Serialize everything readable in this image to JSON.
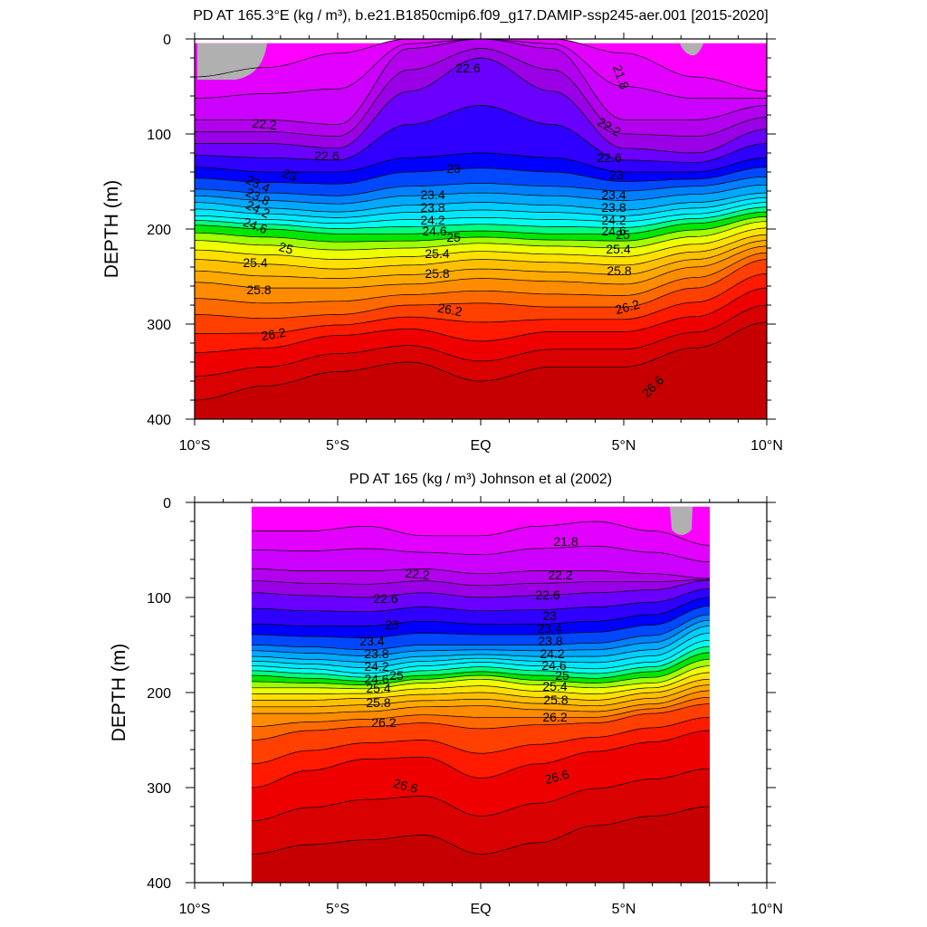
{
  "chart_data": [
    {
      "type": "contour",
      "title": "PD AT 165.3°E (kg / m³), b.e21.B1850cmip6.f09_g17.DAMIP-ssp245-aer.001 [2015-2020]",
      "xlabel": "",
      "ylabel": "DEPTH (m)",
      "xlim": [
        -10,
        10
      ],
      "ylim": [
        400,
        0
      ],
      "x_tick_labels": [
        "10°S",
        "5°S",
        "EQ",
        "5°N",
        "10°N"
      ],
      "y_tick_labels": [
        "0",
        "100",
        "200",
        "300",
        "400"
      ],
      "contour_interval": 0.2,
      "shading_levels": [
        21.6,
        21.8,
        22.0,
        22.2,
        22.4,
        22.6,
        22.8,
        23.0,
        23.2,
        23.4,
        23.6,
        23.8,
        24.0,
        24.2,
        24.4,
        24.6,
        24.8,
        25.0,
        25.2,
        25.4,
        25.6,
        25.8,
        26.0,
        26.2,
        26.4,
        26.6
      ],
      "missing_color": "#b0b0b0",
      "isopycnal_depths": {
        "x": [
          -10,
          -7.5,
          -5,
          -2.5,
          0,
          2.5,
          5,
          7.5,
          10
        ],
        "levels": [
          {
            "value": 21.8,
            "depth": [
              40,
              30,
              15,
              0,
              0,
              0,
              15,
              40,
              55
            ]
          },
          {
            "value": 22.2,
            "depth": [
              85,
              85,
              90,
              10,
              0,
              10,
              85,
              85,
              70
            ]
          },
          {
            "value": 22.6,
            "depth": [
              110,
              110,
              115,
              55,
              20,
              55,
              115,
              120,
              95
            ]
          },
          {
            "value": 23.0,
            "depth": [
              135,
              140,
              140,
              125,
              120,
              125,
              140,
              140,
              125
            ]
          },
          {
            "value": 23.4,
            "depth": [
              158,
              162,
              165,
              155,
              152,
              155,
              160,
              155,
              145
            ]
          },
          {
            "value": 23.8,
            "depth": [
              172,
              178,
              182,
              175,
              172,
              175,
              180,
              172,
              162
            ]
          },
          {
            "value": 24.2,
            "depth": [
              186,
              190,
              194,
              190,
              188,
              190,
              192,
              184,
              172
            ]
          },
          {
            "value": 24.6,
            "depth": [
              196,
              200,
              205,
              205,
              202,
              205,
              205,
              194,
              182
            ]
          },
          {
            "value": 25.0,
            "depth": [
              212,
              217,
              222,
              220,
              215,
              218,
              220,
              208,
              192
            ]
          },
          {
            "value": 25.4,
            "depth": [
              232,
              237,
              242,
              238,
              232,
              235,
              238,
              224,
              206
            ]
          },
          {
            "value": 25.8,
            "depth": [
              256,
              262,
              262,
              258,
              252,
              255,
              258,
              240,
              218
            ]
          },
          {
            "value": 26.2,
            "depth": [
              290,
              294,
              290,
              280,
              278,
              282,
              282,
              262,
              232
            ]
          },
          {
            "value": 26.6,
            "depth": [
              330,
              325,
              312,
              305,
              318,
              308,
              308,
              292,
              262
            ]
          },
          {
            "value": 27.0,
            "depth": [
              380,
              365,
              350,
              340,
              360,
              345,
              345,
              325,
              298
            ]
          }
        ]
      },
      "contour_labels": [
        "22.6",
        "21.8",
        "22.2",
        "22.2",
        "22.6",
        "22.6",
        "23",
        "23",
        "23",
        "23.4",
        "23.8",
        "24.2",
        "24.6",
        "23.4",
        "23.8",
        "24.2",
        "24.6",
        "23.4",
        "23.8",
        "24.2",
        "24.6",
        "25",
        "25",
        "25",
        "25.4",
        "25.4",
        "25.4",
        "25.8",
        "25.8",
        "25.8",
        "26.2",
        "26.2",
        "26.2",
        "26.6"
      ]
    },
    {
      "type": "contour",
      "title": "PD AT 165 (kg / m³) Johnson et al (2002)",
      "xlabel": "",
      "ylabel": "DEPTH (m)",
      "xlim": [
        -10,
        10
      ],
      "ylim": [
        400,
        0
      ],
      "data_xlim": [
        -8,
        8
      ],
      "x_tick_labels": [
        "10°S",
        "5°S",
        "EQ",
        "5°N",
        "10°N"
      ],
      "y_tick_labels": [
        "0",
        "100",
        "200",
        "300",
        "400"
      ],
      "contour_interval": 0.2,
      "missing_color": "#b0b0b0",
      "isopycnal_depths": {
        "x": [
          -8,
          -6,
          -4,
          -2,
          0,
          2,
          4,
          6,
          8
        ],
        "levels": [
          {
            "value": 21.8,
            "depth": [
              30,
              30,
              25,
              35,
              35,
              25,
              20,
              30,
              45
            ]
          },
          {
            "value": 22.2,
            "depth": [
              70,
              72,
              72,
              70,
              75,
              72,
              72,
              75,
              80
            ]
          },
          {
            "value": 22.6,
            "depth": [
              95,
              98,
              100,
              95,
              100,
              98,
              95,
              92,
              82
            ]
          },
          {
            "value": 23.0,
            "depth": [
              128,
              130,
              130,
              125,
              128,
              128,
              125,
              118,
              100
            ]
          },
          {
            "value": 23.4,
            "depth": [
              150,
              152,
              155,
              150,
              150,
              150,
              148,
              140,
              118
            ]
          },
          {
            "value": 23.8,
            "depth": [
              162,
              165,
              168,
              162,
              160,
              162,
              162,
              155,
              130
            ]
          },
          {
            "value": 24.2,
            "depth": [
              172,
              175,
              180,
              172,
              168,
              172,
              175,
              168,
              145
            ]
          },
          {
            "value": 24.6,
            "depth": [
              182,
              185,
              188,
              182,
              178,
              182,
              185,
              178,
              158
            ]
          },
          {
            "value": 25.0,
            "depth": [
              195,
              195,
              196,
              190,
              186,
              192,
              195,
              190,
              172
            ]
          },
          {
            "value": 25.4,
            "depth": [
              208,
              208,
              206,
              202,
              200,
              205,
              208,
              200,
              186
            ]
          },
          {
            "value": 25.8,
            "depth": [
              222,
              222,
              220,
              215,
              214,
              218,
              220,
              212,
              198
            ]
          },
          {
            "value": 26.2,
            "depth": [
              250,
              240,
              236,
              232,
              238,
              234,
              232,
              222,
              212
            ]
          },
          {
            "value": 26.6,
            "depth": [
              300,
              282,
              270,
              268,
              290,
              275,
              262,
              252,
              240
            ]
          },
          {
            "value": 27.0,
            "depth": [
              370,
              360,
              355,
              350,
              370,
              358,
              340,
              330,
              320
            ]
          }
        ]
      },
      "contour_labels": [
        "21.8",
        "22.2",
        "22.2",
        "22.6",
        "22.6",
        "23",
        "23",
        "23.4",
        "23.8",
        "24.2",
        "24.6",
        "25",
        "23.4",
        "23.8",
        "24.2",
        "24.6",
        "25",
        "25.4",
        "25.8",
        "25.4",
        "25.8",
        "26.2",
        "26.2",
        "26.6",
        "26.6"
      ]
    }
  ]
}
